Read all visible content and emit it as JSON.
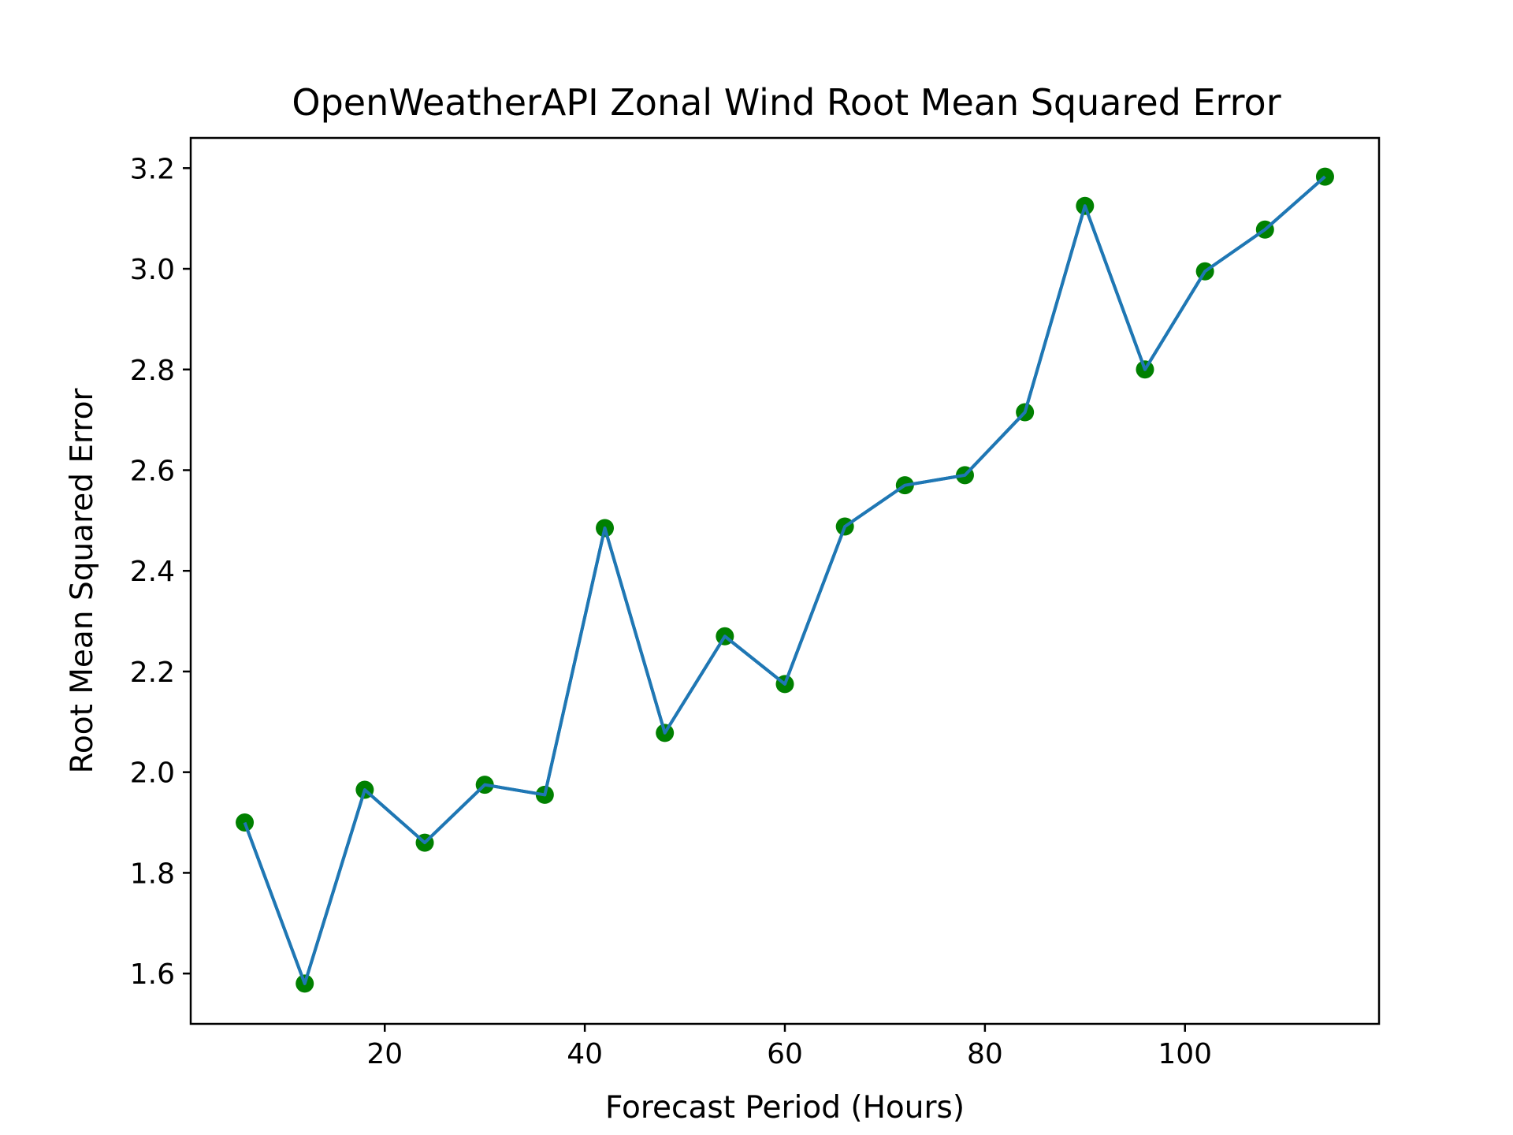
{
  "chart_data": {
    "type": "line",
    "title": "OpenWeatherAPI Zonal Wind Root Mean Squared Error",
    "xlabel": "Forecast Period (Hours)",
    "ylabel": "Root Mean Squared Error",
    "xlim": [
      0.6,
      119.4
    ],
    "ylim": [
      1.5,
      3.26
    ],
    "xticks": [
      20,
      40,
      60,
      80,
      100
    ],
    "xtick_labels": [
      "20",
      "40",
      "60",
      "80",
      "100"
    ],
    "yticks": [
      1.6,
      1.8,
      2.0,
      2.2,
      2.4,
      2.6,
      2.8,
      3.0,
      3.2
    ],
    "ytick_labels": [
      "1.6",
      "1.8",
      "2.0",
      "2.2",
      "2.4",
      "2.6",
      "2.8",
      "3.0",
      "3.2"
    ],
    "grid": false,
    "x": [
      6,
      12,
      18,
      24,
      30,
      36,
      42,
      48,
      54,
      60,
      66,
      72,
      78,
      84,
      90,
      96,
      102,
      108,
      114
    ],
    "series": [
      {
        "values": [
          1.9,
          1.58,
          1.965,
          1.86,
          1.975,
          1.955,
          2.485,
          2.078,
          2.27,
          2.175,
          2.488,
          2.57,
          2.59,
          2.715,
          3.125,
          2.8,
          2.995,
          3.078,
          3.183
        ],
        "line_color": "#1f77b4",
        "marker_color": "#008000"
      }
    ]
  }
}
